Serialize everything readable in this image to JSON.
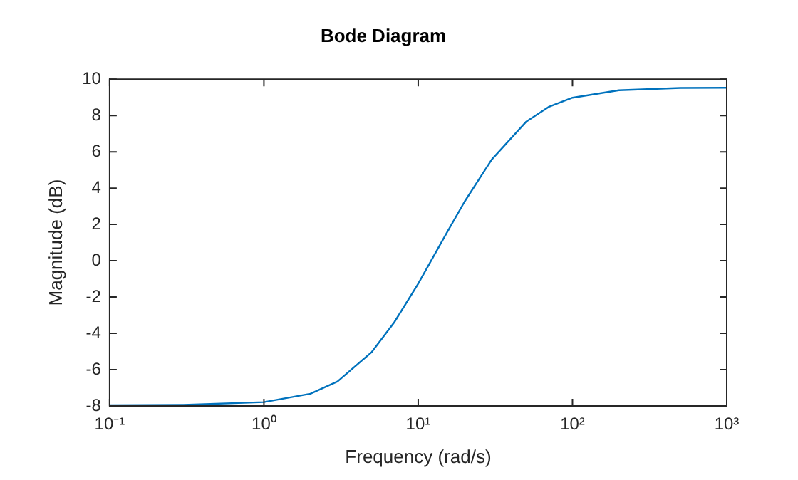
{
  "chart_data": {
    "type": "line",
    "title": "Bode Diagram",
    "xlabel": "Frequency (rad/s)",
    "ylabel": "Magnitude (dB)",
    "log": "x",
    "grid": false,
    "legend": false,
    "marker": "none",
    "line_style": "solid",
    "x": [
      0.1,
      0.3,
      1,
      2,
      3,
      5,
      7,
      10,
      15,
      20,
      30,
      50,
      70,
      100,
      200,
      500,
      1000
    ],
    "series": [
      {
        "color": "#0072bd",
        "values": [
          -7.96,
          -7.94,
          -7.79,
          -7.33,
          -6.65,
          -5.03,
          -3.39,
          -1.27,
          1.4,
          3.26,
          5.58,
          7.65,
          8.47,
          8.98,
          9.39,
          9.52,
          9.53
        ]
      }
    ],
    "xlim": [
      0.1,
      1000
    ],
    "xticks": [
      {
        "value": 0.1,
        "label": "10⁻¹"
      },
      {
        "value": 1,
        "label": "10⁰"
      },
      {
        "value": 10,
        "label": "10¹"
      },
      {
        "value": 100,
        "label": "10²"
      },
      {
        "value": 1000,
        "label": "10³"
      }
    ],
    "ylim": [
      -8,
      10
    ],
    "yticks": [
      -8,
      -6,
      -4,
      -2,
      0,
      2,
      4,
      6,
      8,
      10
    ]
  }
}
